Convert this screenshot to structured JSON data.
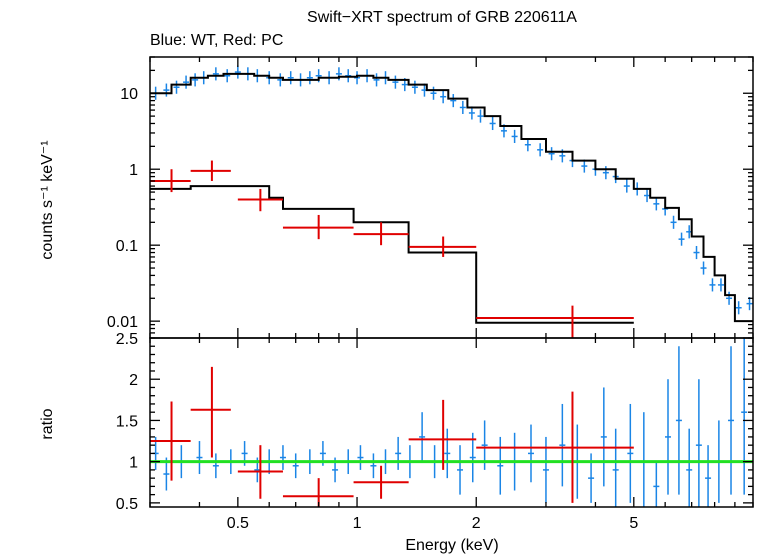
{
  "chart_data": {
    "type": "scatter",
    "title": "Swift−XRT spectrum of GRB 220611A",
    "subtitle": "Blue: WT, Red: PC",
    "xlabel": "Energy (keV)",
    "x_scale": "log",
    "xlim": [
      0.3,
      10
    ],
    "x_ticks": [
      "0.5",
      "1",
      "2",
      "5"
    ],
    "x_tick_values": [
      0.5,
      1,
      2,
      5
    ],
    "colors": {
      "wt": "#1a85e6",
      "pc": "#e00000",
      "model": "#000000",
      "unity": "#22e022"
    },
    "panels": [
      {
        "name": "spectrum",
        "ylabel": "counts s⁻¹ keV⁻¹",
        "y_scale": "log",
        "ylim": [
          0.006,
          30
        ],
        "y_ticks": [
          "0.01",
          "0.1",
          "1",
          "10"
        ],
        "y_tick_values": [
          0.01,
          0.1,
          1,
          10
        ],
        "series": [
          {
            "name": "WT model",
            "style": "step-line",
            "x": [
              0.3,
              0.34,
              0.38,
              0.42,
              0.46,
              0.5,
              0.55,
              0.6,
              0.65,
              0.7,
              0.8,
              0.9,
              1.0,
              1.1,
              1.2,
              1.35,
              1.5,
              1.7,
              1.9,
              2.1,
              2.3,
              2.6,
              3.0,
              3.5,
              4.0,
              4.5,
              5.0,
              5.5,
              6.0,
              6.5,
              7.0,
              7.5,
              8.0,
              8.5,
              9.0,
              10.0
            ],
            "y": [
              10,
              13,
              16,
              17,
              18,
              18,
              17,
              16,
              15,
              15,
              16,
              16.5,
              17,
              16,
              15,
              13,
              11,
              8.5,
              6.5,
              5,
              3.7,
              2.5,
              1.7,
              1.3,
              1.0,
              0.75,
              0.55,
              0.42,
              0.31,
              0.22,
              0.13,
              0.07,
              0.04,
              0.022,
              0.01,
              0.01
            ]
          },
          {
            "name": "WT data",
            "style": "errorbar",
            "x": [
              0.31,
              0.33,
              0.35,
              0.37,
              0.39,
              0.41,
              0.44,
              0.47,
              0.5,
              0.53,
              0.56,
              0.6,
              0.64,
              0.68,
              0.72,
              0.76,
              0.8,
              0.85,
              0.9,
              0.95,
              1.0,
              1.06,
              1.12,
              1.18,
              1.25,
              1.32,
              1.4,
              1.48,
              1.56,
              1.65,
              1.75,
              1.85,
              1.95,
              2.05,
              2.2,
              2.35,
              2.5,
              2.7,
              2.9,
              3.1,
              3.3,
              3.5,
              3.75,
              4.0,
              4.25,
              4.5,
              4.8,
              5.1,
              5.4,
              5.7,
              6.0,
              6.3,
              6.6,
              6.9,
              7.2,
              7.5,
              7.9,
              8.3,
              8.7,
              9.2,
              9.8
            ],
            "y": [
              10,
              11,
              12,
              14,
              15,
              16,
              18,
              17,
              19,
              18,
              17,
              16,
              15,
              16,
              15,
              16,
              17,
              16,
              18,
              17,
              16,
              17,
              15,
              16,
              14,
              13,
              12,
              11,
              10,
              9,
              8,
              6.5,
              5.5,
              5,
              4,
              3.2,
              2.7,
              2.1,
              1.8,
              1.6,
              1.5,
              1.3,
              1.1,
              1.0,
              0.9,
              0.8,
              0.6,
              0.55,
              0.45,
              0.35,
              0.3,
              0.2,
              0.12,
              0.15,
              0.08,
              0.05,
              0.03,
              0.03,
              0.02,
              0.015,
              0.017
            ]
          },
          {
            "name": "PC model",
            "style": "step-line",
            "x": [
              0.3,
              0.38,
              0.46,
              0.52,
              0.6,
              0.65,
              0.8,
              0.98,
              1.2,
              1.35,
              1.7,
              2.0,
              2.5,
              5.0
            ],
            "y": [
              0.55,
              0.6,
              0.6,
              0.6,
              0.42,
              0.3,
              0.3,
              0.2,
              0.2,
              0.08,
              0.08,
              0.0095,
              0.0095,
              0.0095
            ]
          },
          {
            "name": "PC data",
            "style": "errorbar",
            "x": [
              0.34,
              0.43,
              0.57,
              0.8,
              1.15,
              1.65,
              3.5
            ],
            "x_err": [
              [
                0.3,
                0.38
              ],
              [
                0.38,
                0.48
              ],
              [
                0.5,
                0.65
              ],
              [
                0.65,
                0.98
              ],
              [
                0.98,
                1.35
              ],
              [
                1.35,
                2.0
              ],
              [
                2.0,
                5.0
              ]
            ],
            "y": [
              0.7,
              0.95,
              0.4,
              0.17,
              0.14,
              0.095,
              0.011
            ],
            "y_err": [
              [
                0.5,
                1.0
              ],
              [
                0.7,
                1.3
              ],
              [
                0.28,
                0.55
              ],
              [
                0.12,
                0.25
              ],
              [
                0.1,
                0.2
              ],
              [
                0.07,
                0.13
              ],
              [
                0.006,
                0.016
              ]
            ]
          }
        ]
      },
      {
        "name": "ratio",
        "ylabel": "ratio",
        "y_scale": "linear",
        "ylim": [
          0.45,
          2.5
        ],
        "y_ticks": [
          "0.5",
          "1",
          "1.5",
          "2",
          "2.5"
        ],
        "y_tick_values": [
          0.5,
          1,
          1.5,
          2,
          2.5
        ],
        "reference_line": 1,
        "series": [
          {
            "name": "WT ratio",
            "style": "errorbar",
            "x": [
              0.31,
              0.33,
              0.36,
              0.4,
              0.44,
              0.48,
              0.52,
              0.56,
              0.6,
              0.65,
              0.7,
              0.76,
              0.82,
              0.88,
              0.95,
              1.02,
              1.1,
              1.18,
              1.27,
              1.36,
              1.46,
              1.57,
              1.69,
              1.82,
              1.96,
              2.1,
              2.3,
              2.5,
              2.75,
              3.0,
              3.3,
              3.6,
              3.9,
              4.2,
              4.5,
              4.9,
              5.3,
              5.7,
              6.1,
              6.5,
              6.9,
              7.3,
              7.7,
              8.2,
              8.8,
              9.5
            ],
            "y": [
              1.1,
              0.85,
              1.0,
              1.05,
              0.95,
              1.0,
              1.1,
              0.9,
              1.0,
              1.05,
              0.95,
              1.0,
              1.1,
              0.9,
              1.0,
              1.05,
              0.95,
              1.0,
              1.1,
              1.0,
              1.3,
              1.0,
              1.1,
              0.9,
              1.05,
              1.2,
              0.95,
              1.0,
              1.1,
              0.9,
              1.2,
              1.0,
              0.8,
              1.3,
              0.9,
              1.1,
              1.0,
              0.7,
              1.3,
              1.5,
              0.9,
              1.2,
              0.8,
              1.0,
              1.5,
              1.6
            ],
            "y_err": [
              0.2,
              0.2,
              0.2,
              0.2,
              0.15,
              0.15,
              0.15,
              0.15,
              0.15,
              0.15,
              0.15,
              0.15,
              0.15,
              0.15,
              0.15,
              0.15,
              0.15,
              0.15,
              0.2,
              0.2,
              0.3,
              0.2,
              0.3,
              0.3,
              0.3,
              0.3,
              0.35,
              0.35,
              0.35,
              0.4,
              0.5,
              0.45,
              0.3,
              0.6,
              0.5,
              0.6,
              0.6,
              0.3,
              0.7,
              0.9,
              0.5,
              0.8,
              0.4,
              0.5,
              0.9,
              1.0
            ]
          },
          {
            "name": "PC ratio",
            "style": "errorbar",
            "x": [
              0.34,
              0.43,
              0.57,
              0.8,
              1.15,
              1.65,
              3.5
            ],
            "x_err": [
              [
                0.3,
                0.38
              ],
              [
                0.38,
                0.48
              ],
              [
                0.5,
                0.65
              ],
              [
                0.65,
                0.98
              ],
              [
                0.98,
                1.35
              ],
              [
                1.35,
                2.0
              ],
              [
                2.0,
                5.0
              ]
            ],
            "y": [
              1.25,
              1.63,
              0.88,
              0.58,
              0.75,
              1.27,
              1.17
            ],
            "y_err": [
              [
                0.77,
                1.73
              ],
              [
                1.05,
                2.15
              ],
              [
                0.55,
                1.2
              ],
              [
                0.35,
                0.8
              ],
              [
                0.55,
                0.95
              ],
              [
                0.9,
                1.75
              ],
              [
                0.5,
                1.85
              ]
            ]
          }
        ]
      }
    ]
  }
}
